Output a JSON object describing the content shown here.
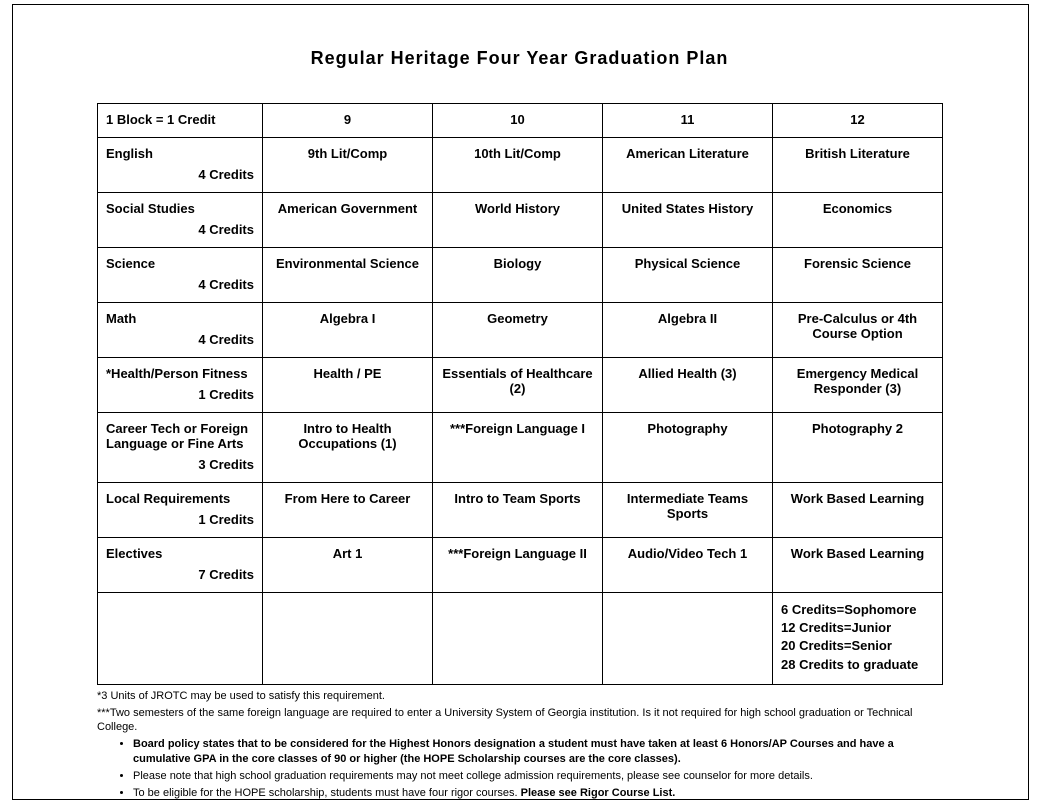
{
  "title": "Regular Heritage Four Year Graduation Plan",
  "table": {
    "header": {
      "col0": "1 Block = 1 Credit",
      "cols": [
        "9",
        "10",
        "11",
        "12"
      ]
    },
    "rows": [
      {
        "subject": "English",
        "credits": "4 Credits",
        "cells": [
          "9th Lit/Comp",
          "10th Lit/Comp",
          "American Literature",
          "British Literature"
        ]
      },
      {
        "subject": "Social Studies",
        "credits": "4 Credits",
        "cells": [
          "American Government",
          "World History",
          "United States History",
          "Economics"
        ]
      },
      {
        "subject": "Science",
        "credits": "4 Credits",
        "cells": [
          "Environmental Science",
          "Biology",
          "Physical Science",
          "Forensic Science"
        ]
      },
      {
        "subject": "Math",
        "credits": "4 Credits",
        "cells": [
          "Algebra I",
          "Geometry",
          "Algebra II",
          "Pre-Calculus or 4th Course Option"
        ]
      },
      {
        "subject": "*Health/Person Fitness",
        "credits": "1 Credits",
        "cells": [
          "Health / PE",
          "Essentials of Healthcare (2)",
          "Allied Health (3)",
          "Emergency Medical Responder (3)"
        ]
      },
      {
        "subject": "Career Tech or Foreign Language or Fine Arts",
        "credits": "3 Credits",
        "cells": [
          "Intro to Health Occupations (1)",
          "***Foreign Language I",
          "Photography",
          "Photography 2"
        ]
      },
      {
        "subject": "Local Requirements",
        "credits": "1 Credits",
        "cells": [
          "From Here to Career",
          "Intro to Team Sports",
          "Intermediate Teams Sports",
          "Work Based Learning"
        ]
      },
      {
        "subject": "Electives",
        "credits": "7 Credits",
        "cells": [
          "Art 1",
          "***Foreign Language II",
          "Audio/Video Tech 1",
          "Work Based Learning"
        ]
      }
    ],
    "credit_notes": [
      "6 Credits=Sophomore",
      "12 Credits=Junior",
      "20 Credits=Senior",
      "28 Credits to graduate"
    ]
  },
  "footnotes": {
    "line1": "*3 Units of JROTC may be used to satisfy this requirement.",
    "line2": "***Two semesters of the same foreign language are required to enter a University System of Georgia institution.  Is it not required for high school graduation or Technical College.",
    "bullets": [
      {
        "text": "Board policy states that to be considered for the Highest Honors designation a student must have taken at least 6 Honors/AP Courses and have a cumulative GPA in the core classes of 90 or higher (the HOPE Scholarship courses are the core classes).",
        "bold": true
      },
      {
        "text": "Please note that high school graduation requirements may not meet college admission requirements, please see counselor for more details.",
        "bold": false
      },
      {
        "text_prefix": "To be eligible for the HOPE scholarship, students must have four rigor courses. ",
        "text_bold": "Please see Rigor Course List.",
        "bold": false
      }
    ]
  }
}
